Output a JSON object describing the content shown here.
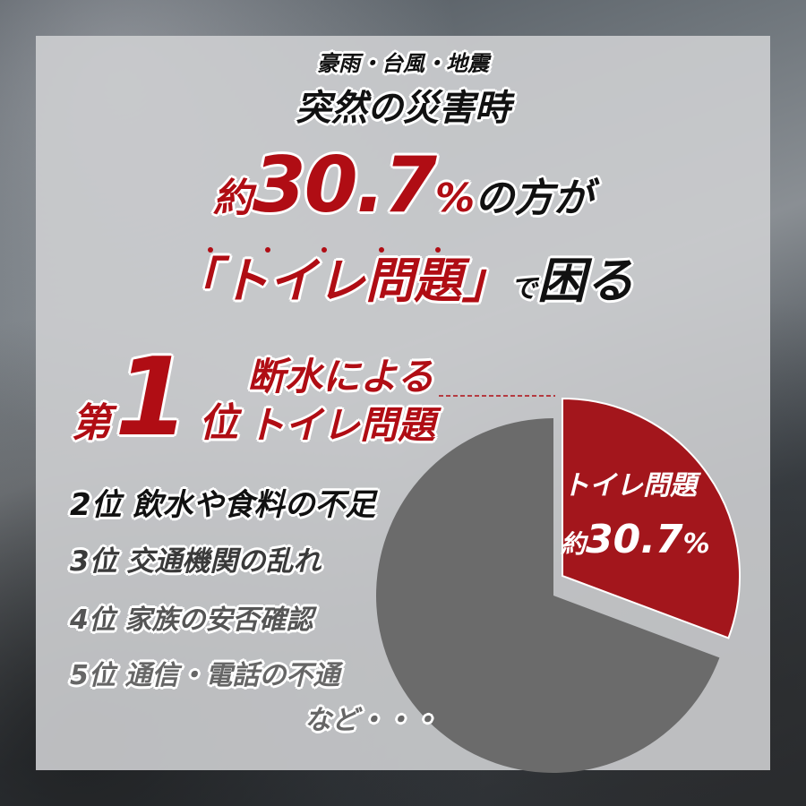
{
  "headline": {
    "line1": "豪雨・台風・地震",
    "line2": "突然の災害時",
    "line3_prefix": "約",
    "line3_number": "30.7",
    "line3_percent": "%",
    "line3_suffix": "の方が",
    "line4_open": "「",
    "line4_red": "トイレ問題",
    "line4_close": "」",
    "line4_de": "で",
    "line4_end": "困る"
  },
  "ranking": {
    "first_prefix": "第",
    "first_number": "1",
    "first_suffix": "位",
    "first_line1": "断水による",
    "first_line2": "トイレ問題",
    "items": [
      {
        "rank": "2位",
        "label": "飲水や食料の不足"
      },
      {
        "rank": "3位",
        "label": "交通機関の乱れ"
      },
      {
        "rank": "4位",
        "label": "家族の安否確認"
      },
      {
        "rank": "5位",
        "label": "通信・電話の不通"
      }
    ],
    "etc": "など・・・"
  },
  "colors": {
    "accent_red": "#b00d14",
    "pie_gray": "#6b6b6b",
    "panel": "#cdced0"
  },
  "chart_data": {
    "type": "pie",
    "slices": [
      {
        "label": "トイレ問題",
        "value": 30.7,
        "color": "#a3161c",
        "exploded": true
      },
      {
        "value": 69.3,
        "color": "#6b6b6b"
      }
    ],
    "label_line1": "トイレ問題",
    "label_prefix": "約",
    "label_value": "30.7",
    "label_unit": "%"
  }
}
